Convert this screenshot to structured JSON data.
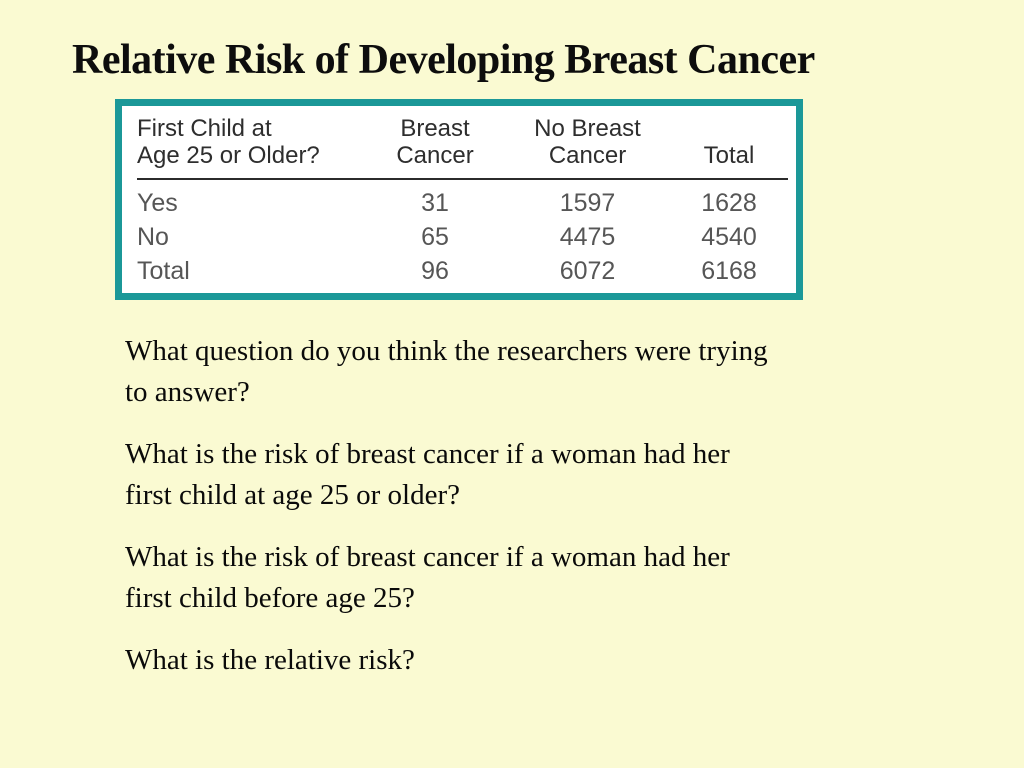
{
  "slide": {
    "background_color": "#FAFAD2",
    "accent_color": "#1B9898",
    "title": "Relative Risk of Developing Breast Cancer"
  },
  "table": {
    "headers": {
      "row_label": "First Child at\nAge 25 or Older?",
      "breast_cancer": "Breast\nCancer",
      "no_breast_cancer": "No Breast\nCancer",
      "total": "Total"
    },
    "rows": [
      {
        "label": "Yes",
        "breast_cancer": "31",
        "no_breast_cancer": "1597",
        "total": "1628"
      },
      {
        "label": "No",
        "breast_cancer": "65",
        "no_breast_cancer": "4475",
        "total": "4540"
      },
      {
        "label": "Total",
        "breast_cancer": "96",
        "no_breast_cancer": "6072",
        "total": "6168"
      }
    ]
  },
  "questions": [
    {
      "text": "What question do you think the researchers were trying\nto answer?"
    },
    {
      "text": "What is the risk of breast cancer if a woman had her\nfirst child at age 25 or older?"
    },
    {
      "text": "What is the risk of breast cancer if a woman had her\nfirst child before age 25?"
    },
    {
      "text": "What is the relative risk?"
    }
  ]
}
